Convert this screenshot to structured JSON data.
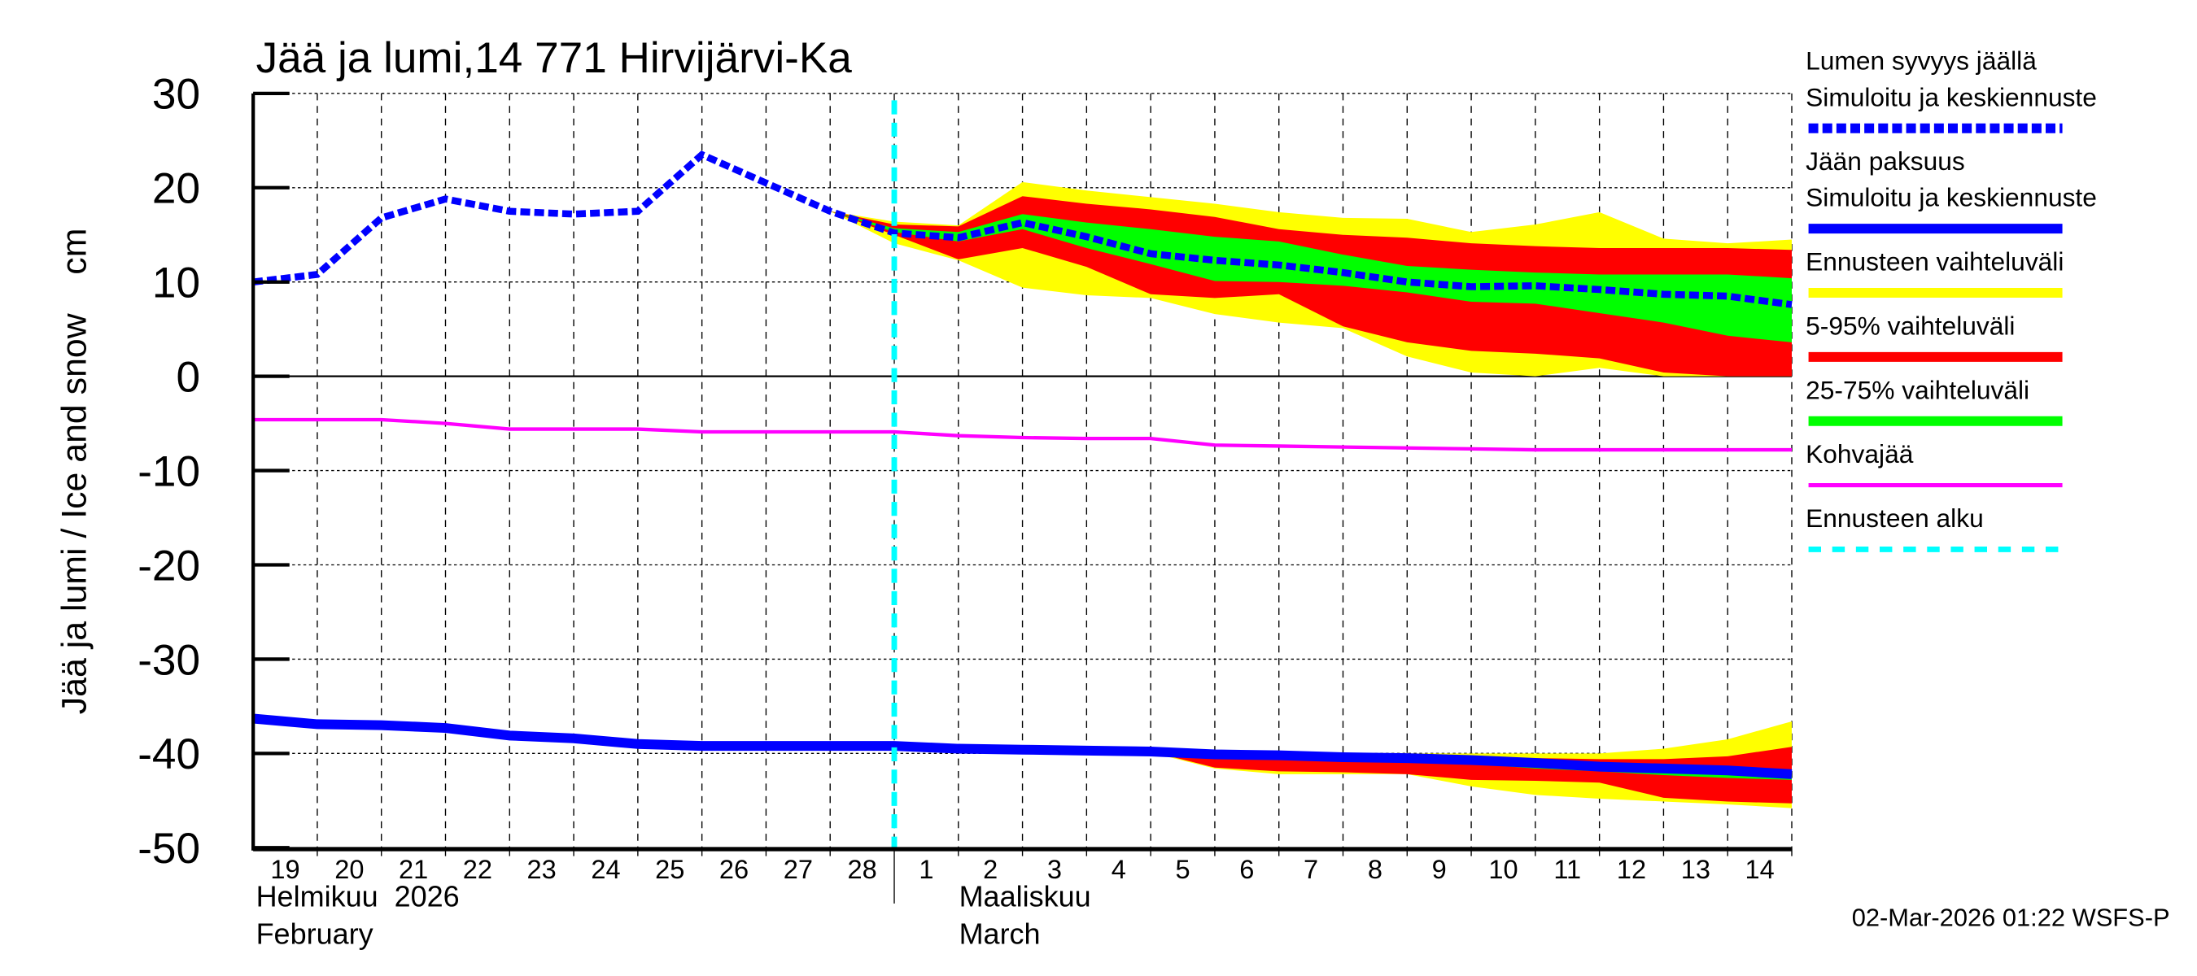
{
  "chart_data": {
    "type": "line",
    "title": "Jää ja lumi,14 771 Hirvijärvi-Ka",
    "ylabel": "Jää ja lumi / Ice and snow    cm",
    "ylim": [
      -50,
      30
    ],
    "yticks": [
      30,
      20,
      10,
      0,
      -10,
      -20,
      -30,
      -40,
      -50
    ],
    "grid": true,
    "legend_position": "right",
    "x_day_labels": [
      "19",
      "20",
      "21",
      "22",
      "23",
      "24",
      "25",
      "26",
      "27",
      "28",
      "1",
      "2",
      "3",
      "4",
      "5",
      "6",
      "7",
      "8",
      "9",
      "10",
      "11",
      "12",
      "13",
      "14"
    ],
    "month_labels": {
      "feb_fi": "Helmikuu  2026",
      "feb_en": "February",
      "mar_fi": "Maaliskuu",
      "mar_en": "March"
    },
    "x_dates": [
      "2026-02-19",
      "2026-02-20",
      "2026-02-21",
      "2026-02-22",
      "2026-02-23",
      "2026-02-24",
      "2026-02-25",
      "2026-02-26",
      "2026-02-27",
      "2026-02-28",
      "2026-03-01",
      "2026-03-02",
      "2026-03-03",
      "2026-03-04",
      "2026-03-05",
      "2026-03-06",
      "2026-03-07",
      "2026-03-08",
      "2026-03-09",
      "2026-03-10",
      "2026-03-11",
      "2026-03-12",
      "2026-03-13",
      "2026-03-14",
      "2026-03-15"
    ],
    "forecast_start_index": 10,
    "series": [
      {
        "name": "Lumen syvyys jäällä — Simuloitu ja keskiennuste",
        "color": "#0000ff",
        "style": "dashed-thick",
        "values": [
          10,
          10.8,
          16.8,
          18.8,
          17.5,
          17.2,
          17.5,
          23.5,
          20.5,
          17.5,
          15.2,
          14.7,
          16.3,
          14.8,
          13.0,
          12.3,
          11.8,
          11.0,
          10.0,
          9.5,
          9.6,
          9.2,
          8.7,
          8.5,
          7.6
        ]
      },
      {
        "name": "Jään paksuus — Simuloitu ja keskiennuste",
        "color": "#0000ff",
        "style": "solid-thick",
        "values": [
          -36.3,
          -36.9,
          -37.0,
          -37.3,
          -38.1,
          -38.4,
          -39.0,
          -39.2,
          -39.2,
          -39.2,
          -39.2,
          -39.5,
          -39.6,
          -39.7,
          -39.8,
          -40.1,
          -40.2,
          -40.4,
          -40.5,
          -40.7,
          -41.0,
          -41.4,
          -41.6,
          -41.8,
          -42.2
        ]
      },
      {
        "name": "Kohvajää",
        "color": "#ff00ff",
        "style": "solid",
        "values": [
          -4.6,
          -4.6,
          -4.6,
          -5.0,
          -5.6,
          -5.6,
          -5.6,
          -5.9,
          -5.9,
          -5.9,
          -5.9,
          -6.3,
          -6.5,
          -6.6,
          -6.6,
          -7.3,
          -7.4,
          -7.5,
          -7.6,
          -7.7,
          -7.8,
          -7.8,
          -7.8,
          -7.8,
          -7.8
        ]
      }
    ],
    "bands": [
      {
        "name": "snow_ennuste",
        "color": "#ffff00",
        "start_index": 9,
        "upper": [
          17.5,
          16.4,
          16.0,
          20.6,
          19.7,
          19.0,
          18.3,
          17.4,
          16.8,
          16.7,
          15.3,
          16.1,
          17.4,
          14.6,
          14.1,
          14.5
        ],
        "lower": [
          17.5,
          14.1,
          12.3,
          9.4,
          8.6,
          8.3,
          6.6,
          5.7,
          5.1,
          2.1,
          0.4,
          0,
          0.9,
          0,
          0,
          0
        ]
      },
      {
        "name": "snow_5_95",
        "color": "#ff0000",
        "start_index": 9,
        "upper": [
          17.5,
          16.1,
          15.9,
          19.1,
          18.3,
          17.7,
          16.9,
          15.6,
          15.0,
          14.7,
          14.1,
          13.8,
          13.6,
          13.6,
          13.6,
          13.4
        ],
        "lower": [
          17.5,
          15.0,
          12.4,
          13.6,
          11.6,
          8.7,
          8.3,
          8.7,
          5.3,
          3.6,
          2.7,
          2.4,
          1.9,
          0.4,
          0,
          0
        ]
      },
      {
        "name": "snow_25_75",
        "color": "#00ff00",
        "start_index": 9,
        "upper": [
          17.5,
          15.7,
          15.3,
          17.2,
          16.3,
          15.6,
          14.8,
          14.3,
          12.9,
          11.7,
          11.3,
          11.0,
          10.8,
          10.8,
          10.8,
          10.4
        ],
        "lower": [
          17.5,
          15.3,
          14.3,
          15.6,
          13.6,
          11.9,
          10.1,
          10.0,
          9.6,
          8.9,
          7.9,
          7.7,
          6.7,
          5.7,
          4.3,
          3.6
        ]
      },
      {
        "name": "ice_ennuste",
        "color": "#ffff00",
        "start_index": 13,
        "upper": [
          -39.7,
          -39.7,
          -39.8,
          -39.8,
          -40.0,
          -40.0,
          -40.0,
          -40.0,
          -40.0,
          -39.5,
          -38.5,
          -36.6
        ],
        "lower": [
          -39.7,
          -39.9,
          -41.6,
          -42.2,
          -42.2,
          -42.2,
          -43.5,
          -44.4,
          -44.8,
          -45.1,
          -45.4,
          -45.8
        ]
      },
      {
        "name": "ice_5_95",
        "color": "#ff0000",
        "start_index": 13,
        "upper": [
          -39.7,
          -39.8,
          -40.1,
          -40.2,
          -40.3,
          -40.4,
          -40.4,
          -40.5,
          -40.6,
          -40.6,
          -40.3,
          -39.3
        ],
        "lower": [
          -39.7,
          -39.8,
          -41.5,
          -41.9,
          -42.0,
          -42.2,
          -42.8,
          -42.9,
          -43.1,
          -44.7,
          -45.1,
          -45.3
        ]
      },
      {
        "name": "ice_25_75",
        "color": "#00ff00",
        "start_index": 13,
        "upper": [
          -39.7,
          -39.8,
          -40.1,
          -40.2,
          -40.4,
          -40.5,
          -40.7,
          -41.0,
          -41.2,
          -41.3,
          -41.5,
          -41.8
        ],
        "lower": [
          -39.7,
          -39.8,
          -40.2,
          -40.3,
          -40.5,
          -40.7,
          -41.1,
          -41.6,
          -41.9,
          -42.3,
          -42.6,
          -42.8
        ]
      }
    ],
    "legend": [
      {
        "line1": "Lumen syvyys jäällä",
        "line2": "Simuloitu ja keskiennuste",
        "color": "#0000ff",
        "style": "dashed-thick"
      },
      {
        "line1": "Jään paksuus",
        "line2": "Simuloitu ja keskiennuste",
        "color": "#0000ff",
        "style": "solid-thick"
      },
      {
        "line1": "Ennusteen vaihteluväli",
        "color": "#ffff00",
        "style": "band"
      },
      {
        "line1": "5-95% vaihteluväli",
        "color": "#ff0000",
        "style": "band"
      },
      {
        "line1": "25-75% vaihteluväli",
        "color": "#00ff00",
        "style": "band"
      },
      {
        "line1": "Kohvajää",
        "color": "#ff00ff",
        "style": "solid"
      },
      {
        "line1": "Ennusteen alku",
        "color": "#00ffff",
        "style": "dashed"
      }
    ],
    "forecast_line_color": "#00ffff",
    "footer": "02-Mar-2026 01:22 WSFS-P"
  }
}
